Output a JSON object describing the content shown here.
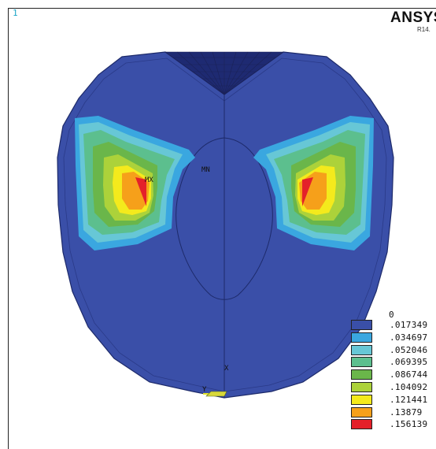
{
  "window_number": "1",
  "brand": "ANSYS",
  "release": "R14.",
  "markers": {
    "max_label": "MX",
    "min_label": "MN",
    "axis_y": "Y",
    "axis_x": "X"
  },
  "legend": {
    "zero": "0",
    "items": [
      {
        "label": ".017349",
        "color": "#3a4fa8"
      },
      {
        "label": ".034697",
        "color": "#3aa7e0"
      },
      {
        "label": ".052046",
        "color": "#67c7d6"
      },
      {
        "label": ".069395",
        "color": "#5cbf8e"
      },
      {
        "label": ".086744",
        "color": "#6ab64a"
      },
      {
        "label": ".104092",
        "color": "#acd23a"
      },
      {
        "label": ".121441",
        "color": "#f4ea1c"
      },
      {
        "label": ".13879",
        "color": "#f6a01a"
      },
      {
        "label": ".156139",
        "color": "#e4202a"
      }
    ]
  }
}
